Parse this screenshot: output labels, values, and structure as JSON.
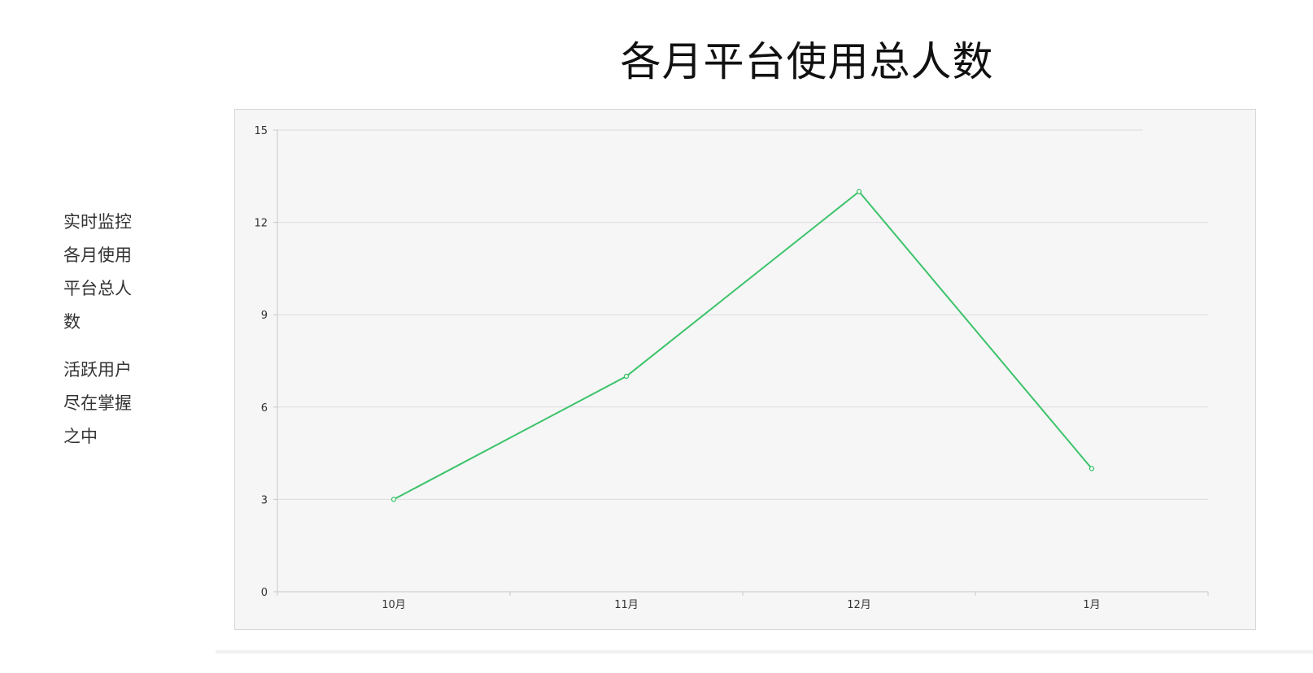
{
  "header": {
    "title": "各月平台使用总人数"
  },
  "sidebar": {
    "paragraph1": "实时监控各月使用平台总人数",
    "paragraph2": "活跃用户尽在掌握之中"
  },
  "chart_data": {
    "type": "line",
    "title": "各月平台使用总人数",
    "xlabel": "",
    "ylabel": "",
    "categories": [
      "10月",
      "11月",
      "12月",
      "1月"
    ],
    "series": [
      {
        "values": [
          3,
          7,
          13,
          4
        ],
        "color": "#3cc36a"
      }
    ],
    "ylim": [
      0,
      15
    ],
    "yticks": [
      0,
      3,
      6,
      9,
      12,
      15
    ],
    "grid": true,
    "legend": "none"
  }
}
